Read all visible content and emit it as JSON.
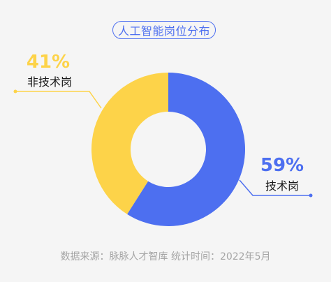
{
  "chart_data": {
    "type": "pie",
    "title": "人工智能岗位分布",
    "categories": [
      "技术岗",
      "非技术岗"
    ],
    "values": [
      59,
      41
    ],
    "value_labels": [
      "59%",
      "41%"
    ],
    "colors": [
      "#4d6ff0",
      "#fdd349"
    ],
    "style": "donut",
    "legend": "none"
  },
  "source_text": "数据来源：脉脉人才智库   统计时间：2022年5月",
  "colors": {
    "background": "#f5f5f5",
    "accent": "#4d6ff0",
    "text": "#1a1a1a",
    "muted": "#a5a5a5"
  }
}
